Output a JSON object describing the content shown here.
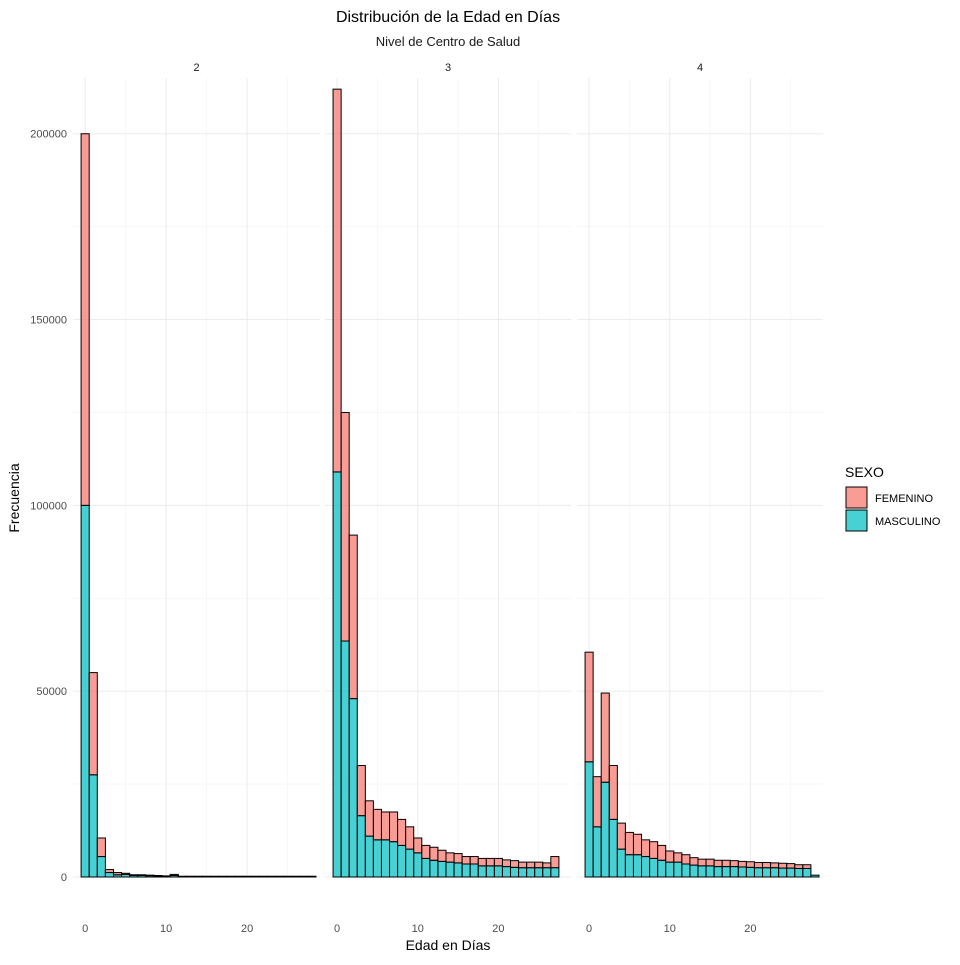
{
  "chart_data": {
    "type": "bar",
    "stacked": true,
    "title": "Distribución de la Edad en Días",
    "subtitle": "Nivel de Centro de Salud",
    "xlabel": "Edad en Días",
    "ylabel": "Frecuencia",
    "xlim": [
      -1.5,
      29
    ],
    "ylim": [
      0,
      215000
    ],
    "x_ticks": [
      0,
      10,
      20
    ],
    "y_ticks": [
      0,
      50000,
      100000,
      150000,
      200000
    ],
    "y_tick_labels": [
      "0",
      "50000",
      "100000",
      "150000",
      "200000"
    ],
    "grid": true,
    "legend": {
      "title": "SEXO",
      "position": "right",
      "entries": [
        {
          "name": "FEMENINO",
          "color": "#F8766D"
        },
        {
          "name": "MASCULINO",
          "color": "#00BFC4"
        }
      ]
    },
    "x": [
      0,
      1,
      2,
      3,
      4,
      5,
      6,
      7,
      8,
      9,
      10,
      11,
      12,
      13,
      14,
      15,
      16,
      17,
      18,
      19,
      20,
      21,
      22,
      23,
      24,
      25,
      26,
      27,
      28
    ],
    "facets": [
      {
        "label": "2",
        "series": [
          {
            "name": "FEMENINO",
            "values": [
              100000,
              27500,
              5000,
              800,
              600,
              300,
              200,
              200,
              150,
              100,
              100,
              300,
              50,
              50,
              50,
              50,
              50,
              50,
              50,
              50,
              50,
              50,
              50,
              50,
              50,
              50,
              50,
              50,
              50
            ]
          },
          {
            "name": "MASCULINO",
            "values": [
              100000,
              27500,
              5500,
              1200,
              600,
              700,
              400,
              400,
              350,
              300,
              200,
              400,
              150,
              150,
              150,
              150,
              150,
              150,
              150,
              150,
              150,
              150,
              150,
              150,
              150,
              150,
              150,
              150,
              150
            ]
          }
        ]
      },
      {
        "label": "3",
        "series": [
          {
            "name": "FEMENINO",
            "values": [
              103000,
              61500,
              44000,
              13500,
              9500,
              8200,
              7500,
              8000,
              7000,
              6000,
              4000,
              3500,
              3500,
              3000,
              2500,
              2500,
              2000,
              2000,
              2000,
              2000,
              2000,
              1800,
              1800,
              1500,
              1500,
              1500,
              1300,
              3000,
              0
            ]
          },
          {
            "name": "MASCULINO",
            "values": [
              109000,
              63500,
              48000,
              16500,
              11000,
              10000,
              10000,
              9500,
              8500,
              7500,
              6500,
              5000,
              4500,
              4200,
              4000,
              3800,
              3500,
              3500,
              3000,
              3000,
              3000,
              2800,
              2600,
              2500,
              2500,
              2500,
              2500,
              2500,
              0
            ]
          }
        ]
      },
      {
        "label": "4",
        "series": [
          {
            "name": "FEMENINO",
            "values": [
              29500,
              13500,
              24000,
              14500,
              7000,
              6000,
              5500,
              4500,
              4500,
              4000,
              3000,
              2500,
              2500,
              2000,
              1800,
              1800,
              1700,
              1700,
              1600,
              1500,
              1500,
              1400,
              1400,
              1300,
              1300,
              1200,
              1000,
              1000,
              0
            ]
          },
          {
            "name": "MASCULINO",
            "values": [
              31000,
              13500,
              25500,
              15500,
              7500,
              6000,
              6000,
              5500,
              5000,
              4500,
              4000,
              4000,
              3500,
              3200,
              3000,
              3000,
              2800,
              2800,
              2800,
              2700,
              2600,
              2500,
              2500,
              2500,
              2400,
              2400,
              2300,
              2300,
              500
            ]
          }
        ]
      }
    ]
  }
}
